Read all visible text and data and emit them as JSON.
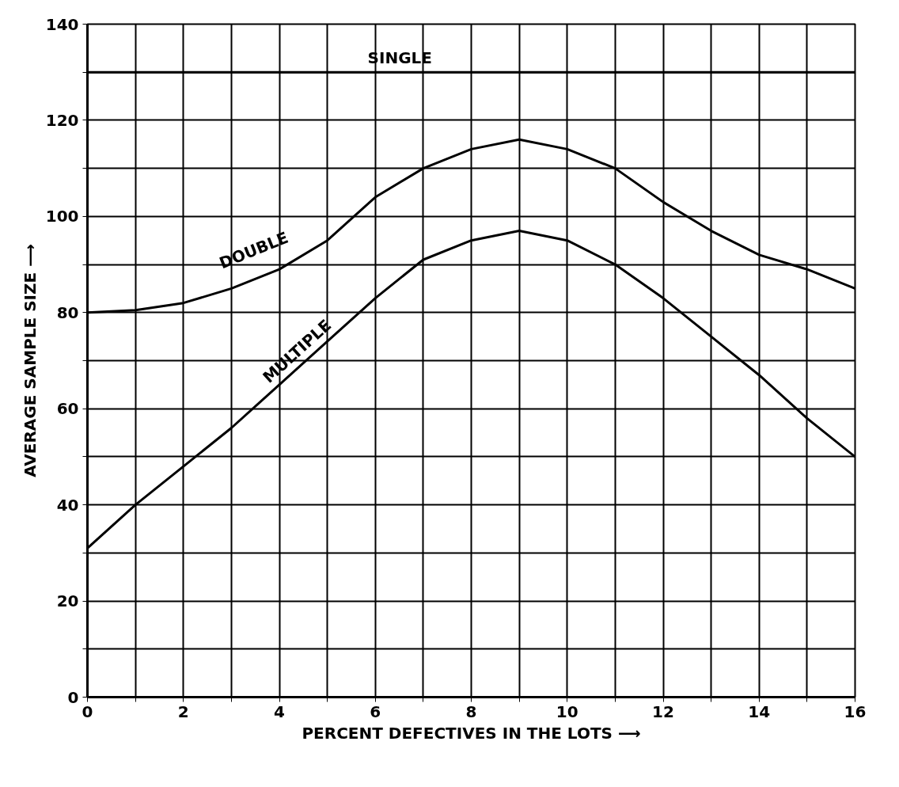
{
  "chart_data": {
    "type": "line",
    "xlabel": "PERCENT DEFECTIVES IN THE LOTS ⟶",
    "ylabel": "AVERAGE SAMPLE SIZE ⟶",
    "x": [
      0,
      1,
      2,
      3,
      4,
      5,
      6,
      7,
      8,
      9,
      10,
      11,
      12,
      13,
      14,
      15,
      16
    ],
    "series": [
      {
        "name": "SINGLE",
        "color": "#000000",
        "values": [
          130,
          130,
          130,
          130,
          130,
          130,
          130,
          130,
          130,
          130,
          130,
          130,
          130,
          130,
          130,
          130,
          130
        ]
      },
      {
        "name": "DOUBLE",
        "color": "#000000",
        "values": [
          80,
          80.5,
          82,
          85,
          89,
          95,
          104,
          110,
          114,
          116,
          114,
          110,
          103,
          97,
          92,
          89,
          85
        ]
      },
      {
        "name": "MULTIPLE",
        "color": "#000000",
        "values": [
          31,
          40,
          48,
          56,
          65,
          74,
          83,
          91,
          95,
          97,
          95,
          90,
          83,
          75,
          67,
          58,
          50
        ]
      }
    ],
    "xlim": [
      0,
      16
    ],
    "ylim": [
      0,
      140
    ],
    "xticks": [
      0,
      {
        "value": 1,
        "label": null
      },
      2,
      {
        "value": 3,
        "label": null
      },
      4,
      {
        "value": 5,
        "label": null
      },
      6,
      {
        "value": 7,
        "label": null
      },
      8,
      {
        "value": 9,
        "label": null
      },
      10,
      {
        "value": 11,
        "label": null
      },
      12,
      {
        "value": 13,
        "label": null
      },
      14,
      {
        "value": 15,
        "label": null
      },
      16
    ],
    "yticks": [
      0,
      {
        "value": 10,
        "label": null
      },
      20,
      {
        "value": 30,
        "label": null
      },
      40,
      {
        "value": 50,
        "label": null
      },
      60,
      {
        "value": 70,
        "label": null
      },
      80,
      {
        "value": 90,
        "label": null
      },
      100,
      {
        "value": 110,
        "label": null
      },
      120,
      {
        "value": 130,
        "label": null
      },
      140
    ],
    "grid": true,
    "legend": false,
    "marker": "none",
    "line_style": "solid"
  }
}
